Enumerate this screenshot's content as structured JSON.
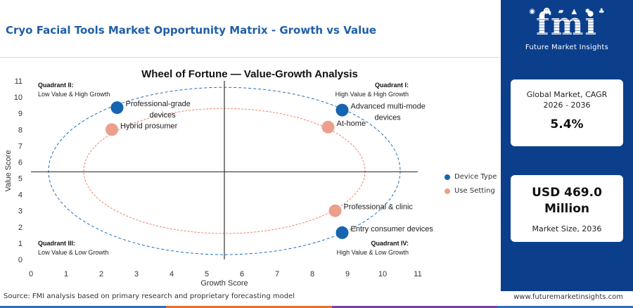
{
  "page": {
    "title": "Cryo Facial Tools Market Opportunity Matrix - Growth vs Value",
    "source": "Source: FMI analysis based on primary research and proprietary forecasting model",
    "site_url": "www.futuremarketinsights.com"
  },
  "brand": {
    "logo_text": "fmi",
    "tagline": "Future Market Insights",
    "icon_names": [
      "globe-icon",
      "people-icon",
      "vehicle-icon",
      "chart-icon",
      "gear-icon",
      "leaf-icon"
    ],
    "colors": {
      "panel": "#0b3f8c",
      "title": "#1f5fa8",
      "strip": [
        "#2f6fb8",
        "#e8702a",
        "#7a3fa0",
        "#2f6fb8"
      ]
    }
  },
  "stats": {
    "cagr_label": "Global Market, CAGR 2026 - 2036",
    "cagr_value": "5.4%",
    "size_value": "USD 469.0 Million",
    "size_label": "Market Size, 2036"
  },
  "chart_data": {
    "type": "scatter",
    "title": "Wheel of Fortune — Value-Growth Analysis",
    "xlabel": "Growth Score",
    "ylabel": "Value Score",
    "xlim": [
      0,
      11
    ],
    "ylim": [
      0,
      11
    ],
    "xticks": [
      0,
      1,
      2,
      3,
      4,
      5,
      6,
      7,
      8,
      9,
      10,
      11
    ],
    "yticks": [
      0,
      1,
      2,
      3,
      4,
      5,
      6,
      7,
      8,
      9,
      10,
      11
    ],
    "grid": false,
    "divider": {
      "x": 5.5,
      "y": 5.4
    },
    "quadrants": [
      {
        "id": "q1",
        "name": "Quadrant I:",
        "desc": "High Value & High Growth",
        "corner": "top-right"
      },
      {
        "id": "q2",
        "name": "Quadrant II:",
        "desc": "Low Value & High Growth",
        "corner": "top-left"
      },
      {
        "id": "q3",
        "name": "Quadrant III:",
        "desc": "Low Value & Low Growth",
        "corner": "bottom-left"
      },
      {
        "id": "q4",
        "name": "Quadrant IV:",
        "desc": "High Value & Low Growth",
        "corner": "bottom-right"
      }
    ],
    "rings": [
      {
        "series": "Device Type",
        "cx": 5.5,
        "cy": 5.45,
        "rx": 5.0,
        "ry": 5.15,
        "color": "#1f6fb8"
      },
      {
        "series": "Use Setting",
        "cx": 5.5,
        "cy": 5.45,
        "rx": 4.0,
        "ry": 3.85,
        "color": "#e8866a"
      }
    ],
    "series": [
      {
        "name": "Device Type",
        "color": "#1565b0",
        "points": [
          {
            "label": "Professional-grade devices",
            "label_lines": [
              "Professional-grade",
              "devices"
            ],
            "x": 2.45,
            "y": 9.35
          },
          {
            "label": "Advanced multi-mode devices",
            "label_lines": [
              "Advanced multi-mode",
              "devices"
            ],
            "x": 8.85,
            "y": 9.2
          },
          {
            "label": "Entry consumer devices",
            "label_lines": [
              "Entry consumer devices"
            ],
            "x": 8.85,
            "y": 1.65
          }
        ]
      },
      {
        "name": "Use Setting",
        "color": "#eba08c",
        "points": [
          {
            "label": "Hybrid prosumer",
            "label_lines": [
              "Hybrid prosumer"
            ],
            "x": 2.3,
            "y": 8.0
          },
          {
            "label": "At-home",
            "label_lines": [
              "At-home"
            ],
            "x": 8.45,
            "y": 8.15
          },
          {
            "label": "Professional & clinic",
            "label_lines": [
              "Professional & clinic"
            ],
            "x": 8.65,
            "y": 3.0
          }
        ]
      }
    ],
    "legend_position": "right"
  }
}
